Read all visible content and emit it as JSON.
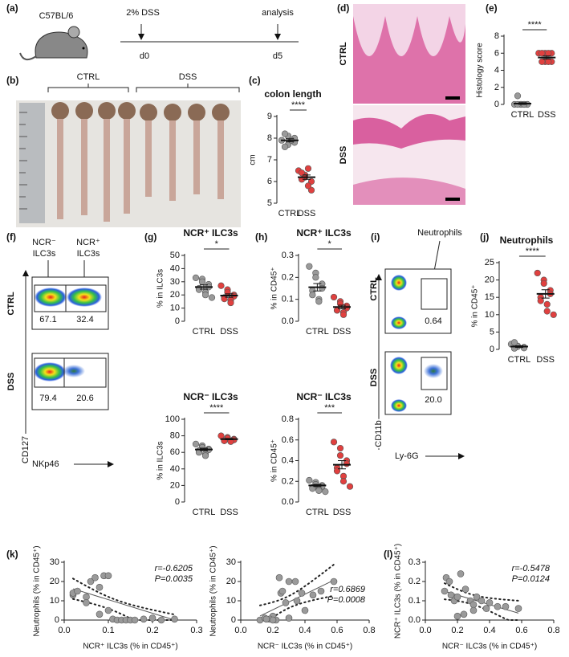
{
  "panel_labels": [
    "(a)",
    "(b)",
    "(c)",
    "(d)",
    "(e)",
    "(f)",
    "(g)",
    "(h)",
    "(i)",
    "(j)",
    "(k)",
    "(l)"
  ],
  "timeline": {
    "strain": "C57BL/6",
    "treatment": "2% DSS",
    "analysis": "analysis",
    "start": "d0",
    "end": "d5"
  },
  "colon_photo": {
    "groups": [
      "CTRL",
      "DSS"
    ]
  },
  "histology": {
    "rows": [
      "CTRL",
      "DSS"
    ]
  },
  "flow_ilc3": {
    "neg_gate": [
      "NCR⁻",
      "ILC3s"
    ],
    "pos_gate": [
      "NCR⁺",
      "ILC3s"
    ],
    "rows": [
      "CTRL",
      "DSS"
    ],
    "values": [
      [
        "67.1",
        "32.4"
      ],
      [
        "79.4",
        "20.6"
      ]
    ],
    "y_axis": "CD127",
    "x_axis": "NKp46"
  },
  "flow_neutrophil": {
    "gate": "Neutrophils",
    "rows": [
      "CTRL",
      "DSS"
    ],
    "values": [
      "0.64",
      "20.0"
    ],
    "y_axis": "CD11b",
    "x_axis": "Ly-6G"
  },
  "chart_data": [
    {
      "type": "dot",
      "title": "colon length",
      "ylabel": "cm",
      "ylim": [
        5,
        9
      ],
      "yticks": [
        5,
        6,
        7,
        8,
        9
      ],
      "categories": [
        "CTRL",
        "DSS"
      ],
      "significance": "****",
      "groups": [
        {
          "color": "#9a9a9a",
          "values": [
            7.9,
            8.1,
            7.7,
            7.8,
            8.0,
            7.6,
            8.2,
            7.9
          ],
          "mean": 7.9,
          "sem": 0.07
        },
        {
          "color": "#e0403f",
          "values": [
            6.5,
            6.3,
            6.2,
            6.0,
            5.6,
            6.4,
            6.1,
            5.8,
            6.6
          ],
          "mean": 6.2,
          "sem": 0.1
        }
      ]
    },
    {
      "type": "dot",
      "ylabel": "Histology score",
      "ylim": [
        0,
        8
      ],
      "yticks": [
        0,
        2,
        4,
        6,
        8
      ],
      "categories": [
        "CTRL",
        "DSS"
      ],
      "significance": "****",
      "groups": [
        {
          "color": "#9a9a9a",
          "values": [
            0,
            0,
            0,
            0,
            0,
            0,
            1,
            0,
            0
          ],
          "mean": 0.1,
          "sem": 0.1
        },
        {
          "color": "#e0403f",
          "values": [
            6,
            6,
            5,
            5,
            6,
            5,
            6,
            5,
            6
          ],
          "mean": 5.5,
          "sem": 0.17
        }
      ]
    },
    {
      "type": "dot",
      "title": "NCR⁺ ILC3s",
      "ylabel": "% in ILC3s",
      "ylim": [
        0,
        50
      ],
      "yticks": [
        0,
        10,
        20,
        30,
        40,
        50
      ],
      "categories": [
        "CTRL",
        "DSS"
      ],
      "significance": "*",
      "groups": [
        {
          "color": "#9a9a9a",
          "values": [
            33,
            32,
            30,
            28,
            26,
            25,
            24,
            22,
            20,
            18
          ],
          "mean": 26,
          "sem": 1.6
        },
        {
          "color": "#e0403f",
          "values": [
            27,
            24,
            22,
            20,
            19,
            18,
            17,
            16,
            14
          ],
          "mean": 19.5,
          "sem": 1.3
        }
      ]
    },
    {
      "type": "dot",
      "title": "NCR⁻ ILC3s",
      "ylabel": "% in ILC3s",
      "ylim": [
        0,
        100
      ],
      "yticks": [
        0,
        20,
        40,
        60,
        80,
        100
      ],
      "categories": [
        "CTRL",
        "DSS"
      ],
      "significance": "****",
      "groups": [
        {
          "color": "#9a9a9a",
          "values": [
            70,
            68,
            66,
            64,
            63,
            62,
            60,
            58,
            56
          ],
          "mean": 63.5,
          "sem": 1.5
        },
        {
          "color": "#e0403f",
          "values": [
            80,
            78,
            77,
            76,
            75,
            74,
            74,
            73
          ],
          "mean": 76,
          "sem": 0.8
        }
      ]
    },
    {
      "type": "dot",
      "title": "NCR⁺ ILC3s",
      "ylabel": "% in CD45⁺",
      "ylim": [
        0,
        0.3
      ],
      "yticks": [
        {
          "value": 0,
          "label": "0.0"
        },
        0.1,
        0.2,
        0.3
      ],
      "categories": [
        "CTRL",
        "DSS"
      ],
      "significance": "*",
      "groups": [
        {
          "color": "#9a9a9a",
          "values": [
            0.25,
            0.22,
            0.2,
            0.17,
            0.15,
            0.14,
            0.12,
            0.1,
            0.09
          ],
          "mean": 0.155,
          "sem": 0.017
        },
        {
          "color": "#e0403f",
          "values": [
            0.11,
            0.09,
            0.08,
            0.07,
            0.06,
            0.05,
            0.05,
            0.04,
            0.03
          ],
          "mean": 0.065,
          "sem": 0.008
        }
      ]
    },
    {
      "type": "dot",
      "title": "NCR⁻ ILC3s",
      "ylabel": "% in CD45⁺",
      "ylim": [
        0,
        0.8
      ],
      "yticks": [
        {
          "value": 0,
          "label": "0.0"
        },
        0.2,
        0.4,
        0.6,
        0.8
      ],
      "categories": [
        "CTRL",
        "DSS"
      ],
      "significance": "***",
      "groups": [
        {
          "color": "#9a9a9a",
          "values": [
            0.21,
            0.19,
            0.17,
            0.16,
            0.15,
            0.14,
            0.13,
            0.12,
            0.11,
            0.1
          ],
          "mean": 0.16,
          "sem": 0.01
        },
        {
          "color": "#e0403f",
          "values": [
            0.58,
            0.52,
            0.45,
            0.4,
            0.37,
            0.33,
            0.3,
            0.25,
            0.2,
            0.15
          ],
          "mean": 0.36,
          "sem": 0.04
        }
      ]
    },
    {
      "type": "dot",
      "title": "Neutrophils",
      "ylabel": "% in CD45⁺",
      "ylim": [
        0,
        25
      ],
      "yticks": [
        0,
        5,
        10,
        15,
        20,
        25
      ],
      "categories": [
        "CTRL",
        "DSS"
      ],
      "significance": "****",
      "groups": [
        {
          "color": "#9a9a9a",
          "values": [
            1.5,
            1,
            0.8,
            0.6,
            0.4,
            0.3,
            2
          ],
          "mean": 0.8,
          "sem": 0.25
        },
        {
          "color": "#e0403f",
          "values": [
            22,
            20,
            19,
            17,
            16,
            15,
            14,
            13,
            11,
            10
          ],
          "mean": 16,
          "sem": 1.2
        }
      ]
    },
    {
      "type": "scatter",
      "xlabel": "NCR⁺ ILC3s (% in CD45⁺)",
      "ylabel": "Neutrophils (% in CD45⁺)",
      "xlim": [
        0,
        0.3
      ],
      "xticks": [
        {
          "value": 0,
          "label": "0.0"
        },
        0.1,
        0.2,
        0.3
      ],
      "ylim": [
        0,
        30
      ],
      "yticks": [
        0,
        10,
        20,
        30
      ],
      "color": "#9a9a9a",
      "fit": true,
      "annotations": [
        "r=-0.6205",
        "P=0.0035"
      ],
      "annotation_corner": "top-right",
      "x": [
        0.02,
        0.02,
        0.03,
        0.05,
        0.05,
        0.06,
        0.07,
        0.08,
        0.09,
        0.1,
        0.08,
        0.1,
        0.11,
        0.12,
        0.13,
        0.14,
        0.15,
        0.16,
        0.2,
        0.22,
        0.25,
        0.18
      ],
      "values": [
        13,
        14,
        15,
        12,
        9,
        20,
        22,
        17,
        23,
        23,
        3,
        5,
        0.5,
        0,
        0,
        0,
        0,
        0,
        1,
        0,
        0.5,
        0.5
      ]
    },
    {
      "type": "scatter",
      "xlabel": "NCR⁻ ILC3s (% in CD45⁺)",
      "ylabel": "Neutrophils (% in CD45⁺)",
      "xlim": [
        0,
        0.8
      ],
      "xticks": [
        {
          "value": 0,
          "label": "0.0"
        },
        0.2,
        0.4,
        0.6,
        0.8
      ],
      "ylim": [
        0,
        30
      ],
      "yticks": [
        0,
        10,
        20,
        30
      ],
      "color": "#9a9a9a",
      "fit": true,
      "annotations": [
        "r=0.6869",
        "P=0.0008"
      ],
      "annotation_corner": "bottom-right",
      "x": [
        0.12,
        0.15,
        0.2,
        0.18,
        0.22,
        0.24,
        0.25,
        0.26,
        0.28,
        0.3,
        0.34,
        0.35,
        0.38,
        0.4,
        0.45,
        0.5,
        0.58,
        0.2,
        0.16,
        0.3
      ],
      "values": [
        0,
        1,
        2,
        0.5,
        0,
        22,
        14,
        15,
        9,
        20,
        20,
        10,
        14,
        5,
        13,
        15,
        20,
        0,
        0.5,
        1
      ]
    },
    {
      "type": "scatter",
      "xlabel": "NCR⁻ ILC3s (% in CD45⁺)",
      "ylabel": "NCR⁺ ILC3s (% in CD45⁺)",
      "xlim": [
        0,
        0.8
      ],
      "xticks": [
        {
          "value": 0,
          "label": "0.0"
        },
        0.2,
        0.4,
        0.6,
        0.8
      ],
      "ylim": [
        0,
        0.3
      ],
      "yticks": [
        {
          "value": 0,
          "label": "0.0"
        },
        0.1,
        0.2,
        0.3
      ],
      "color": "#9a9a9a",
      "fit": true,
      "annotations": [
        "r=-0.5478",
        "P=0.0124"
      ],
      "annotation_corner": "top-right",
      "x": [
        0.12,
        0.13,
        0.15,
        0.16,
        0.18,
        0.2,
        0.22,
        0.25,
        0.28,
        0.3,
        0.32,
        0.35,
        0.38,
        0.4,
        0.45,
        0.5,
        0.58,
        0.2,
        0.24,
        0.3
      ],
      "values": [
        0.15,
        0.22,
        0.2,
        0.13,
        0.1,
        0.12,
        0.24,
        0.16,
        0.1,
        0.08,
        0.12,
        0.1,
        0.06,
        0.09,
        0.07,
        0.07,
        0.06,
        0.02,
        0.03,
        0.05
      ]
    }
  ]
}
